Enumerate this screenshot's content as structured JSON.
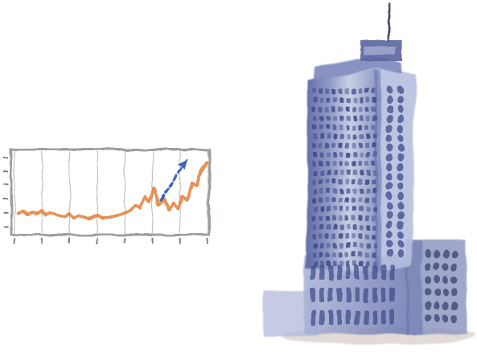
{
  "colors": {
    "background": "#ffffff",
    "chart_frame": "#8b9088",
    "chart_line": "#e3894a",
    "trend_arrow": "#3f66b8",
    "building_dark": "#4d5a93",
    "building_light": "#9aa4cc",
    "building_shadow": "#c5b9b4"
  },
  "chart_data": {
    "type": "line",
    "x": [
      0,
      1,
      2,
      3,
      4,
      5,
      6,
      7,
      8,
      9,
      10,
      11,
      12,
      13,
      14,
      15,
      16,
      17,
      18,
      19,
      20,
      21,
      22,
      23,
      24,
      25,
      26,
      27,
      28,
      29,
      30,
      31,
      32,
      33,
      34,
      35,
      36,
      37,
      38,
      39,
      40
    ],
    "values": [
      18,
      20,
      17,
      19,
      18,
      21,
      17,
      19,
      18,
      16,
      15,
      18,
      14,
      16,
      15,
      13,
      15,
      16,
      14,
      15,
      16,
      17,
      18,
      20,
      23,
      28,
      25,
      35,
      31,
      45,
      28,
      33,
      22,
      29,
      24,
      36,
      32,
      50,
      47,
      64,
      72
    ],
    "trend_arrow": true,
    "ylim": [
      0,
      80
    ],
    "grid": true,
    "x_tick_count": 8,
    "y_tick_count": 6
  }
}
